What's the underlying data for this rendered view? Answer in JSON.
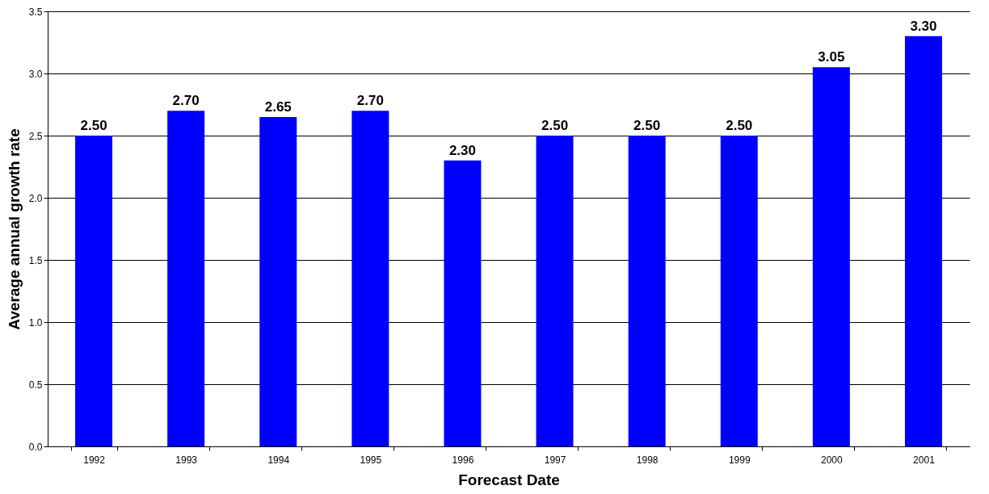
{
  "chart_data": {
    "type": "bar",
    "xlabel": "Forecast Date",
    "ylabel": "Average annual growth rate",
    "categories": [
      "1992",
      "1993",
      "1994",
      "1995",
      "1996",
      "1997",
      "1998",
      "1999",
      "2000",
      "2001"
    ],
    "values": [
      2.5,
      2.7,
      2.65,
      2.7,
      2.3,
      2.5,
      2.5,
      2.5,
      3.05,
      3.3
    ],
    "value_labels": [
      "2.50",
      "2.70",
      "2.65",
      "2.70",
      "2.30",
      "2.50",
      "2.50",
      "2.50",
      "3.05",
      "3.30"
    ],
    "color": "#0000ff",
    "ylim": [
      0,
      3.5
    ],
    "yticks": [
      {
        "value": 0,
        "label": "0.0"
      },
      0.5,
      {
        "value": 1,
        "label": "1.0"
      },
      1.5,
      {
        "value": 2,
        "label": "2.0"
      },
      2.5,
      {
        "value": 3,
        "label": "3.0"
      },
      3.5
    ],
    "grid": "y"
  }
}
